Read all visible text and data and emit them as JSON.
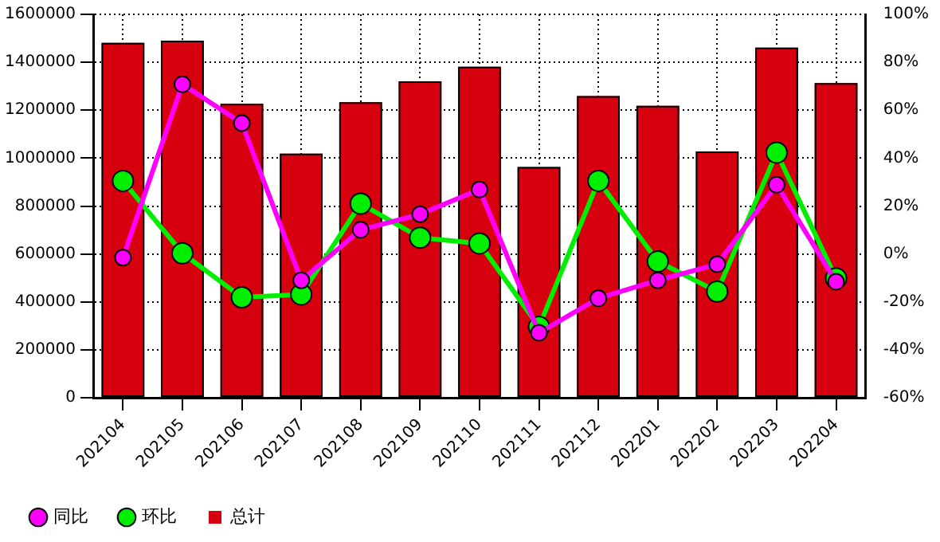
{
  "chart_data": {
    "type": "bar",
    "categories": [
      "202104",
      "202105",
      "202106",
      "202107",
      "202108",
      "202109",
      "202110",
      "202111",
      "202112",
      "202201",
      "202202",
      "202203",
      "202204"
    ],
    "series": [
      {
        "name": "同比",
        "type": "line",
        "axis": "y2",
        "color": "#ff00ff",
        "marker": "circle",
        "values": [
          -1.5,
          70.8,
          54.6,
          -11,
          10.1,
          16.6,
          26.9,
          -32.9,
          -18.5,
          -11,
          -4.3,
          28.9,
          -11.6
        ]
      },
      {
        "name": "环比",
        "type": "line",
        "axis": "y2",
        "color": "#00ee00",
        "marker": "circle",
        "values": [
          30.5,
          0.3,
          -18.1,
          -16.9,
          21,
          6.8,
          4.4,
          -30.4,
          30.5,
          -3.1,
          -15.7,
          42.3,
          -10.2
        ]
      },
      {
        "name": "总计",
        "color": "#d7000f",
        "values": [
          1481000,
          1490000,
          1227000,
          1019000,
          1233000,
          1321000,
          1381000,
          963000,
          1259000,
          1218000,
          1028000,
          1461000,
          1313000
        ]
      }
    ],
    "ylim": [
      0,
      1600000
    ],
    "yticks": [
      0,
      200000,
      400000,
      600000,
      800000,
      1000000,
      1200000,
      1400000,
      1600000
    ],
    "y2lim": [
      -60,
      100
    ],
    "y2ticks": [
      {
        "value": -60,
        "label": "-60%"
      },
      {
        "value": -40,
        "label": "-40%"
      },
      {
        "value": -20,
        "label": "-20%"
      },
      {
        "value": 0,
        "label": "0%"
      },
      {
        "value": 20,
        "label": "20%"
      },
      {
        "value": 40,
        "label": "40%"
      },
      {
        "value": 60,
        "label": "60%"
      },
      {
        "value": 80,
        "label": "80%"
      },
      {
        "value": 100,
        "label": "100%"
      }
    ],
    "grid": true,
    "legend": "bottom left"
  }
}
